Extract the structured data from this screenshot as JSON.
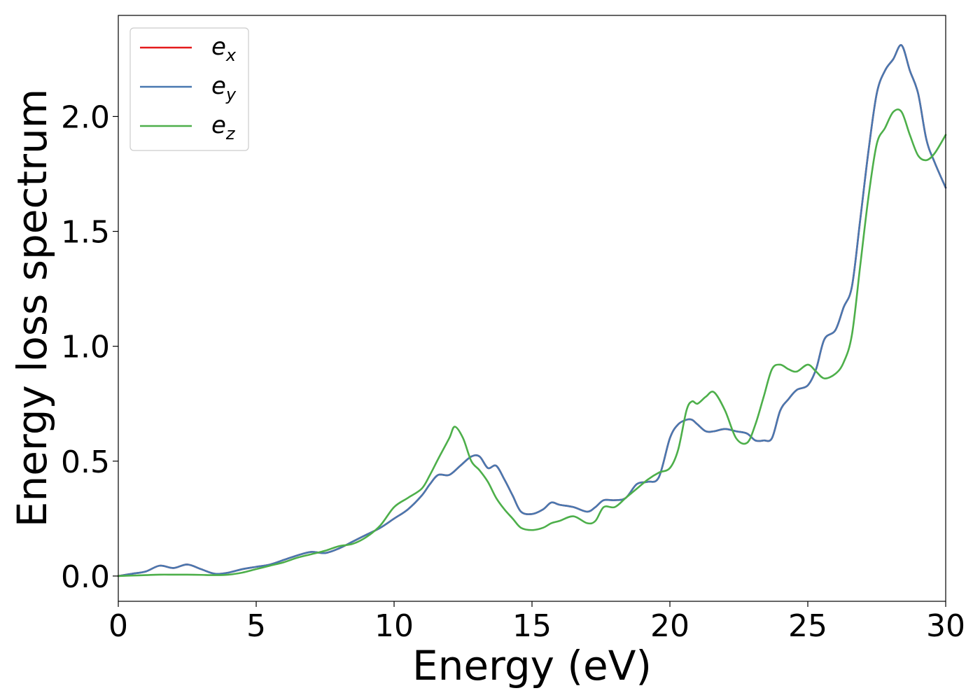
{
  "chart_data": {
    "type": "line",
    "xlabel": "Energy (eV)",
    "ylabel": "Energy loss spectrum",
    "xlim": [
      0,
      30
    ],
    "ylim": [
      -0.11,
      2.44
    ],
    "grid": false,
    "legend_position": "top-left",
    "x_ticks": [
      0,
      5,
      10,
      15,
      20,
      25,
      30
    ],
    "x_tick_labels": [
      "0",
      "5",
      "10",
      "15",
      "20",
      "25",
      "30"
    ],
    "y_ticks": [
      0.0,
      0.5,
      1.0,
      1.5,
      2.0
    ],
    "y_tick_labels": [
      "0.0",
      "0.5",
      "1.0",
      "1.5",
      "2.0"
    ],
    "series": [
      {
        "name": "e_x",
        "label_base": "e",
        "label_sub": "x",
        "color": "#e41a1c",
        "x": [
          0,
          0.5,
          1.0,
          1.5,
          2.0,
          2.5,
          3.0,
          3.5,
          4.0,
          4.5,
          5.0,
          5.5,
          6.0,
          6.5,
          7.0,
          7.5,
          8.0,
          8.5,
          9.0,
          9.5,
          10.0,
          10.5,
          11.0,
          11.3,
          11.6,
          12.0,
          12.4,
          12.8,
          13.1,
          13.4,
          13.7,
          14.0,
          14.3,
          14.6,
          15.0,
          15.4,
          15.7,
          16.0,
          16.5,
          17.0,
          17.3,
          17.6,
          18.0,
          18.4,
          18.8,
          19.2,
          19.6,
          20.0,
          20.3,
          20.6,
          20.8,
          21.0,
          21.3,
          21.6,
          22.0,
          22.4,
          22.8,
          23.1,
          23.4,
          23.7,
          24.0,
          24.3,
          24.6,
          25.0,
          25.3,
          25.6,
          26.0,
          26.3,
          26.6,
          26.9,
          27.2,
          27.5,
          27.8,
          28.1,
          28.4,
          28.7,
          29.0,
          29.3,
          29.6,
          30.0
        ],
        "y": [
          0.0,
          0.01,
          0.02,
          0.045,
          0.035,
          0.05,
          0.03,
          0.01,
          0.015,
          0.03,
          0.04,
          0.05,
          0.07,
          0.09,
          0.105,
          0.1,
          0.12,
          0.15,
          0.18,
          0.21,
          0.25,
          0.29,
          0.35,
          0.4,
          0.44,
          0.44,
          0.48,
          0.52,
          0.52,
          0.47,
          0.48,
          0.42,
          0.35,
          0.28,
          0.27,
          0.29,
          0.32,
          0.31,
          0.3,
          0.28,
          0.3,
          0.33,
          0.33,
          0.34,
          0.4,
          0.41,
          0.43,
          0.6,
          0.66,
          0.68,
          0.68,
          0.66,
          0.63,
          0.63,
          0.64,
          0.63,
          0.62,
          0.59,
          0.59,
          0.6,
          0.72,
          0.77,
          0.81,
          0.83,
          0.9,
          1.03,
          1.07,
          1.17,
          1.26,
          1.55,
          1.85,
          2.1,
          2.2,
          2.25,
          2.31,
          2.2,
          2.1,
          1.9,
          1.8,
          1.69
        ]
      },
      {
        "name": "e_y",
        "label_base": "e",
        "label_sub": "y",
        "color": "#4878b0",
        "x": [
          0,
          0.5,
          1.0,
          1.5,
          2.0,
          2.5,
          3.0,
          3.5,
          4.0,
          4.5,
          5.0,
          5.5,
          6.0,
          6.5,
          7.0,
          7.5,
          8.0,
          8.5,
          9.0,
          9.5,
          10.0,
          10.5,
          11.0,
          11.3,
          11.6,
          12.0,
          12.4,
          12.8,
          13.1,
          13.4,
          13.7,
          14.0,
          14.3,
          14.6,
          15.0,
          15.4,
          15.7,
          16.0,
          16.5,
          17.0,
          17.3,
          17.6,
          18.0,
          18.4,
          18.8,
          19.2,
          19.6,
          20.0,
          20.3,
          20.6,
          20.8,
          21.0,
          21.3,
          21.6,
          22.0,
          22.4,
          22.8,
          23.1,
          23.4,
          23.7,
          24.0,
          24.3,
          24.6,
          25.0,
          25.3,
          25.6,
          26.0,
          26.3,
          26.6,
          26.9,
          27.2,
          27.5,
          27.8,
          28.1,
          28.4,
          28.7,
          29.0,
          29.3,
          29.6,
          30.0
        ],
        "y": [
          0.0,
          0.01,
          0.02,
          0.045,
          0.035,
          0.05,
          0.03,
          0.01,
          0.015,
          0.03,
          0.04,
          0.05,
          0.07,
          0.09,
          0.105,
          0.1,
          0.12,
          0.15,
          0.18,
          0.21,
          0.25,
          0.29,
          0.35,
          0.4,
          0.44,
          0.44,
          0.48,
          0.52,
          0.52,
          0.47,
          0.48,
          0.42,
          0.35,
          0.28,
          0.27,
          0.29,
          0.32,
          0.31,
          0.3,
          0.28,
          0.3,
          0.33,
          0.33,
          0.34,
          0.4,
          0.41,
          0.43,
          0.6,
          0.66,
          0.68,
          0.68,
          0.66,
          0.63,
          0.63,
          0.64,
          0.63,
          0.62,
          0.59,
          0.59,
          0.6,
          0.72,
          0.77,
          0.81,
          0.83,
          0.9,
          1.03,
          1.07,
          1.17,
          1.26,
          1.55,
          1.85,
          2.1,
          2.2,
          2.25,
          2.31,
          2.2,
          2.1,
          1.9,
          1.8,
          1.69
        ]
      },
      {
        "name": "e_z",
        "label_base": "e",
        "label_sub": "z",
        "color": "#4daf4a",
        "x": [
          0,
          0.5,
          1.0,
          1.5,
          2.0,
          2.5,
          3.0,
          3.5,
          4.0,
          4.5,
          5.0,
          5.5,
          6.0,
          6.5,
          7.0,
          7.5,
          8.0,
          8.5,
          9.0,
          9.5,
          10.0,
          10.5,
          11.0,
          11.3,
          11.6,
          12.0,
          12.2,
          12.5,
          12.8,
          13.1,
          13.4,
          13.7,
          14.0,
          14.3,
          14.6,
          15.0,
          15.4,
          15.7,
          16.0,
          16.5,
          17.0,
          17.3,
          17.6,
          18.0,
          18.4,
          18.8,
          19.2,
          19.6,
          20.0,
          20.3,
          20.6,
          20.8,
          21.0,
          21.3,
          21.6,
          22.0,
          22.4,
          22.8,
          23.1,
          23.4,
          23.7,
          24.0,
          24.3,
          24.6,
          25.0,
          25.3,
          25.6,
          26.0,
          26.3,
          26.6,
          26.9,
          27.2,
          27.5,
          27.8,
          28.1,
          28.4,
          28.7,
          29.0,
          29.3,
          29.6,
          30.0
        ],
        "y": [
          0.0,
          0.002,
          0.004,
          0.006,
          0.006,
          0.006,
          0.005,
          0.004,
          0.006,
          0.015,
          0.03,
          0.045,
          0.06,
          0.08,
          0.095,
          0.11,
          0.13,
          0.14,
          0.17,
          0.22,
          0.3,
          0.34,
          0.38,
          0.44,
          0.51,
          0.6,
          0.65,
          0.6,
          0.5,
          0.46,
          0.41,
          0.34,
          0.29,
          0.25,
          0.21,
          0.2,
          0.21,
          0.23,
          0.24,
          0.26,
          0.23,
          0.24,
          0.3,
          0.3,
          0.34,
          0.38,
          0.42,
          0.45,
          0.47,
          0.55,
          0.72,
          0.76,
          0.75,
          0.78,
          0.8,
          0.72,
          0.6,
          0.58,
          0.66,
          0.78,
          0.9,
          0.92,
          0.9,
          0.89,
          0.92,
          0.89,
          0.86,
          0.88,
          0.93,
          1.05,
          1.35,
          1.65,
          1.88,
          1.95,
          2.02,
          2.02,
          1.92,
          1.83,
          1.81,
          1.84,
          1.92
        ]
      }
    ]
  }
}
